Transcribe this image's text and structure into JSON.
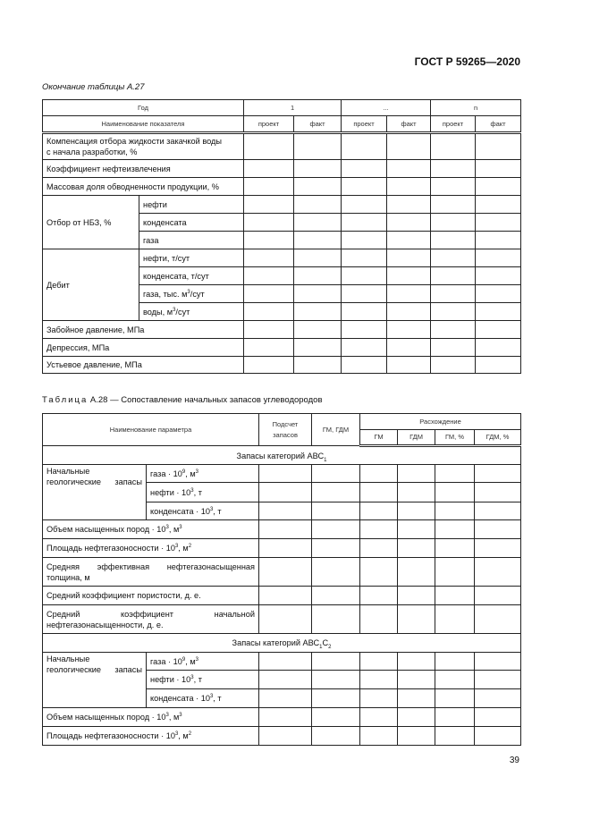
{
  "header": "ГОСТ Р 59265—2020",
  "table1": {
    "caption": "Окончание таблицы А.27",
    "year_label": "Год",
    "years": [
      "1",
      "...",
      "n"
    ],
    "name_label": "Наименование показателя",
    "proj": "проект",
    "fact": "факт",
    "rows": {
      "r1a": "Компенсация отбора жидкости закачкой воды",
      "r1b": "с начала разработки, %",
      "r2": "Коэффициент нефтеизвлечения",
      "r3": "Массовая доля обводненности продукции, %",
      "nbz": "Отбор от НБЗ, %",
      "nbz_sub": [
        "нефти",
        "конденсата",
        "газа"
      ],
      "debit": "Дебит",
      "debit_sub": [
        "нефти, т/сут",
        "конденсата, т/сут",
        "газа, тыс. м",
        "воды, м"
      ],
      "debit_unit": "/сут",
      "sup3": "3",
      "r4": "Забойное давление, МПа",
      "r5": "Депрессия, МПа",
      "r6": "Устьевое давление, МПа"
    }
  },
  "table2": {
    "caption_prefix": "Таблица",
    "caption": "А.28 — Сопоставление начальных запасов углеводородов",
    "h_name": "Наименование параметра",
    "h_count": "Подсчет запасов",
    "h_gm": "ГМ, ГДМ",
    "h_diff": "Расхождение",
    "h_sub": [
      "ГМ",
      "ГДМ",
      "ГМ, %",
      "ГДМ, %"
    ],
    "sec1": "Запасы категорий АВС",
    "sec1_sub": "1",
    "sec2": "Запасы категорий АВС",
    "sec2_sub1": "1",
    "sec2_c": "С",
    "sec2_sub2": "2",
    "geo": "Начальные геологические запасы",
    "gas": "газа · 10",
    "gas_exp": "9",
    "unit_m3": ", м",
    "oil": "нефти · 10",
    "oil_exp": "3",
    "unit_t": ", т",
    "cond": "конденсата · 10",
    "vol": "Объем насыщенных пород · 10",
    "area": "Площадь нефтегазоносности · 10",
    "area_unit": ", м",
    "sup2": "2",
    "sup3": "3",
    "thick": "Средняя эффективная нефтегазонасыщенная толщина, м",
    "por": "Средний коэффициент пористости, д. е.",
    "sat": "Средний коэффициент начальной нефтегазонасыщенности, д. е."
  },
  "page_number": "39"
}
